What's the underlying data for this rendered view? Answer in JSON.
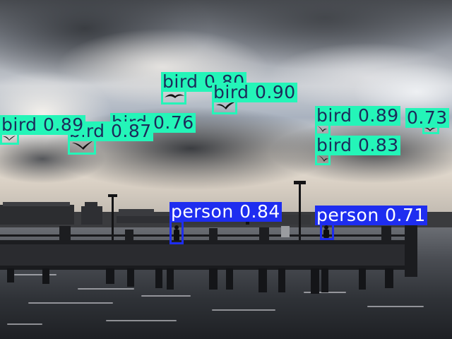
{
  "image": {
    "scene": "pier-sky-water",
    "colors": {
      "bird_box": "#24f5b8",
      "bird_label_text": "#1c2b5a",
      "person_box": "#1e2df0",
      "person_label_text": "#ffffff"
    }
  },
  "detections": [
    {
      "label": "bird 0.80",
      "cls": "bird"
    },
    {
      "label": "bird 0.90",
      "cls": "bird"
    },
    {
      "label": "bird 0.89",
      "cls": "bird"
    },
    {
      "label": "bird 0.87",
      "cls": "bird"
    },
    {
      "label": "bird 0.76",
      "cls": "bird"
    },
    {
      "label": "bird 0.89",
      "cls": "bird"
    },
    {
      "label": "0.73",
      "cls": "bird"
    },
    {
      "label": "bird 0.83",
      "cls": "bird"
    },
    {
      "label": "person 0.84",
      "cls": "person"
    },
    {
      "label": "person 0.71",
      "cls": "person"
    }
  ]
}
